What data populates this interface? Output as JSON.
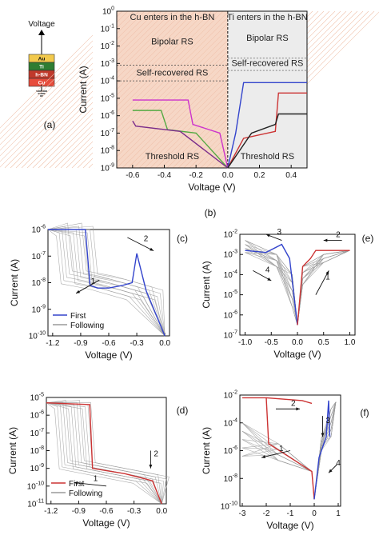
{
  "device": {
    "voltage_label": "Voltage",
    "layers": [
      "Au",
      "Ti",
      "h-BN",
      "Cu"
    ],
    "layer_colors": [
      "#f2c94c",
      "#2e7d32",
      "#c0392b",
      "#e74c3c"
    ]
  },
  "chart_data": [
    {
      "id": "a",
      "type": "line",
      "panel_label": "(a)",
      "xlabel": "Voltage (V)",
      "ylabel": "Current (A)",
      "xlim": [
        -0.7,
        0.5
      ],
      "ylim_log10": [
        -9,
        0
      ],
      "xticks": [
        "-0.6",
        "-0.4",
        "-0.2",
        "0.0",
        "0.2",
        "0.4"
      ],
      "yticks": [
        "10-9",
        "10-8",
        "10-7",
        "10-6",
        "10-5",
        "10-4",
        "10-3",
        "10-2",
        "10-1",
        "100"
      ],
      "region_labels": {
        "left_header": "Cu enters in the h-BN",
        "right_header": "Ti enters in the h-BN",
        "bipolar_left": "Bipolar RS",
        "bipolar_right": "Bipolar RS",
        "self_left": "Self-recovered RS",
        "self_right": "Self-recovered RS",
        "threshold_left": "Threshold RS",
        "threshold_right": "Threshold RS"
      },
      "shading_colors": {
        "left": "#f6d7c6",
        "right": "#ececec"
      },
      "series": [
        {
          "color": "#cc33cc",
          "x": [
            -0.6,
            -0.55,
            -0.25,
            -0.22,
            -0.05,
            0.0
          ],
          "y": [
            -5.1,
            -5.1,
            -5.1,
            -6.5,
            -7.0,
            -9.0
          ]
        },
        {
          "color": "#55aa44",
          "x": [
            -0.6,
            -0.42,
            -0.38,
            -0.2,
            0.0
          ],
          "y": [
            -5.7,
            -5.7,
            -6.8,
            -7.0,
            -9.0
          ]
        },
        {
          "color": "#7b2d8b",
          "x": [
            -0.6,
            -0.58,
            -0.3,
            0.0
          ],
          "y": [
            -6.3,
            -6.6,
            -6.9,
            -9.0
          ]
        },
        {
          "color": "#3344cc",
          "x": [
            0.0,
            0.05,
            0.1,
            0.5
          ],
          "y": [
            -9.0,
            -7.0,
            -4.1,
            -4.1
          ]
        },
        {
          "color": "#cc3333",
          "x": [
            0.0,
            0.1,
            0.3,
            0.32,
            0.5
          ],
          "y": [
            -9.0,
            -7.3,
            -6.9,
            -4.7,
            -4.7
          ]
        },
        {
          "color": "#222222",
          "x": [
            0.0,
            0.15,
            0.3,
            0.32,
            0.5
          ],
          "y": [
            -9.0,
            -7.0,
            -6.5,
            -5.9,
            -5.9
          ]
        }
      ]
    },
    {
      "id": "c",
      "type": "line",
      "panel_label": "(c)",
      "xlabel": "Voltage (V)",
      "ylabel": "Current (A)",
      "xlim": [
        -1.25,
        0.05
      ],
      "ylim_log10": [
        -10,
        -6
      ],
      "xticks": [
        "-1.2",
        "-0.9",
        "-0.6",
        "-0.3",
        "0.0"
      ],
      "yticks": [
        "10-10",
        "10-9",
        "10-8",
        "10-7",
        "10-6"
      ],
      "legend": {
        "position": "bottom-left",
        "entries": [
          {
            "name": "First",
            "color": "#3344cc"
          },
          {
            "name": "Following",
            "color": "#9a9a9a"
          }
        ]
      },
      "annotations": [
        "1",
        "2"
      ],
      "series": [
        {
          "name": "First",
          "color": "#3344cc",
          "x": [
            -1.25,
            -0.85,
            -0.8,
            -0.72,
            -0.6,
            -0.45,
            -0.35,
            -0.3,
            -0.2,
            0.0
          ],
          "y": [
            -6.0,
            -6.0,
            -8.1,
            -8.2,
            -8.2,
            -8.1,
            -8.0,
            -6.9,
            -8.3,
            -10.0
          ]
        },
        {
          "name": "Following",
          "color": "#9a9a9a",
          "x": [
            -1.25,
            -0.95,
            -0.9,
            -0.6,
            -0.2,
            0.0
          ],
          "y": [
            -6.0,
            -6.0,
            -7.8,
            -8.0,
            -8.4,
            -10.0
          ]
        }
      ]
    },
    {
      "id": "e",
      "type": "line",
      "panel_label": "(e)",
      "xlabel": "Voltage (V)",
      "ylabel": "Current (A)",
      "xlim": [
        -1.1,
        1.1
      ],
      "ylim_log10": [
        -7,
        -2
      ],
      "xticks": [
        "-1.0",
        "-0.5",
        "0.0",
        "0.5",
        "1.0"
      ],
      "yticks": [
        "10-7",
        "10-6",
        "10-5",
        "10-4",
        "10-3",
        "10-2"
      ],
      "annotations": [
        "1",
        "2",
        "3",
        "4"
      ],
      "series": [
        {
          "name": "blue",
          "color": "#3344cc",
          "x": [
            -1.0,
            -0.6,
            -0.3,
            -0.15,
            0.0
          ],
          "y": [
            -2.8,
            -2.9,
            -2.5,
            -3.2,
            -6.5
          ]
        },
        {
          "name": "red",
          "color": "#cc3333",
          "x": [
            0.0,
            0.1,
            0.25,
            0.35,
            1.0
          ],
          "y": [
            -6.5,
            -3.6,
            -3.2,
            -2.8,
            -2.8
          ]
        }
      ]
    },
    {
      "id": "d",
      "type": "line",
      "panel_label": "(d)",
      "xlabel": "Voltage (V)",
      "ylabel": "Current (A)",
      "xlim": [
        -1.25,
        0.05
      ],
      "ylim_log10": [
        -11,
        -5
      ],
      "xticks": [
        "-1.2",
        "-0.9",
        "-0.6",
        "-0.3",
        "0.0"
      ],
      "yticks": [
        "10-11",
        "10-10",
        "10-9",
        "10-8",
        "10-7",
        "10-6",
        "10-5"
      ],
      "legend": {
        "position": "bottom-left",
        "entries": [
          {
            "name": "First",
            "color": "#cc3333"
          },
          {
            "name": "Following",
            "color": "#9a9a9a"
          }
        ]
      },
      "annotations": [
        "1",
        "2"
      ],
      "series": [
        {
          "name": "First",
          "color": "#cc3333",
          "x": [
            -1.25,
            -0.78,
            -0.75,
            -0.4,
            -0.1,
            0.0
          ],
          "y": [
            -5.3,
            -5.4,
            -9.0,
            -9.3,
            -9.7,
            -11.0
          ]
        },
        {
          "name": "Following",
          "color": "#9a9a9a",
          "x": [
            -1.25,
            -0.95,
            -0.9,
            -0.5,
            -0.1,
            0.0
          ],
          "y": [
            -5.3,
            -5.4,
            -8.8,
            -9.2,
            -9.6,
            -11.0
          ]
        }
      ]
    },
    {
      "id": "f",
      "type": "line",
      "panel_label": "(f)",
      "xlabel": "Voltage (V)",
      "ylabel": "Current (A)",
      "xlim": [
        -3.1,
        1.1
      ],
      "ylim_log10": [
        -10,
        -2
      ],
      "xticks": [
        "-3",
        "-2",
        "-1",
        "0",
        "1"
      ],
      "yticks": [
        "10-10",
        "10-8",
        "10-6",
        "10-4",
        "10-2"
      ],
      "annotations": [
        "1",
        "2",
        "3",
        "4"
      ],
      "series": [
        {
          "name": "red",
          "color": "#cc3333",
          "x": [
            -3.0,
            -2.0,
            -1.9,
            -1.0,
            -0.1,
            0.0
          ],
          "y": [
            -2.2,
            -2.2,
            -5.5,
            -6.5,
            -7.5,
            -9.5
          ]
        },
        {
          "name": "blue",
          "color": "#3344cc",
          "x": [
            0.0,
            0.2,
            0.5,
            0.6,
            0.65
          ],
          "y": [
            -9.5,
            -6.5,
            -5.0,
            -2.4,
            -5.0
          ]
        },
        {
          "name": "red-upper",
          "color": "#cc3333",
          "x": [
            -2.0,
            -0.5,
            -0.1
          ],
          "y": [
            -2.2,
            -2.4,
            -2.6
          ]
        }
      ]
    }
  ]
}
